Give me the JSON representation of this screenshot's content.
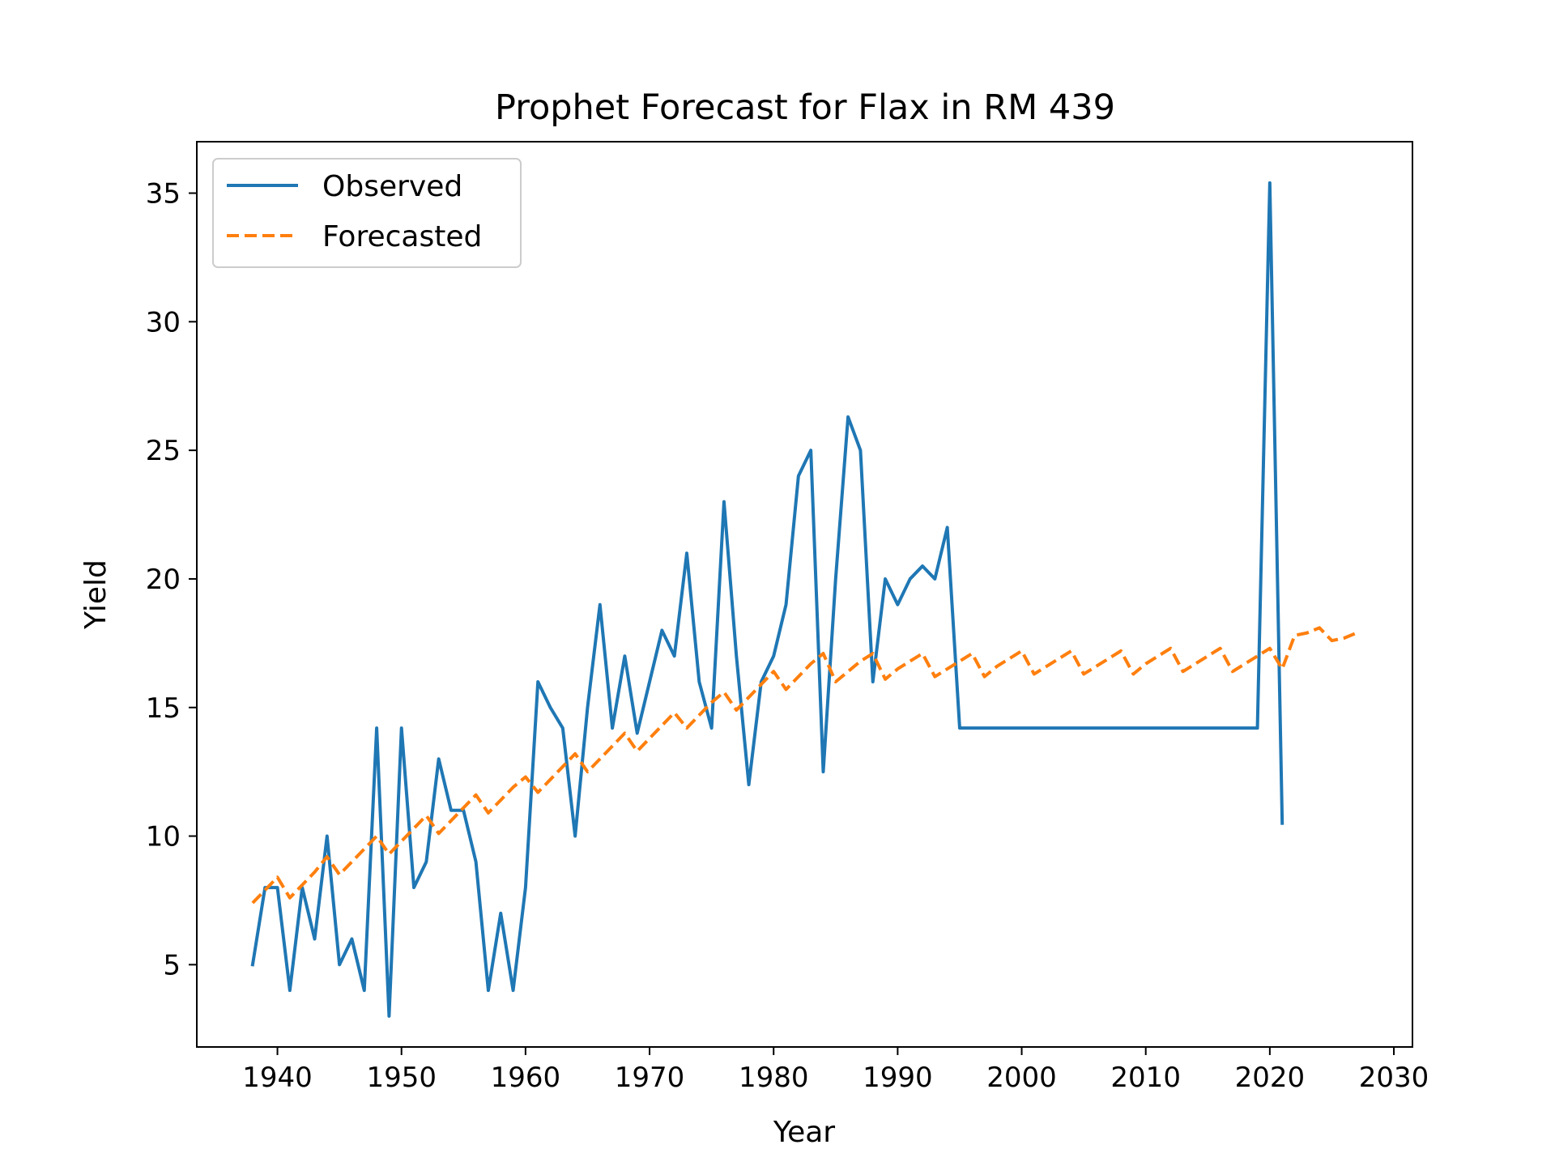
{
  "chart_data": {
    "type": "line",
    "title": "Prophet Forecast for Flax in RM 439",
    "xlabel": "Year",
    "ylabel": "Yield",
    "xlim": [
      1933.5,
      2031.5
    ],
    "ylim": [
      1.8,
      37
    ],
    "xticks": [
      1940,
      1950,
      1960,
      1970,
      1980,
      1990,
      2000,
      2010,
      2020,
      2030
    ],
    "yticks": [
      5,
      10,
      15,
      20,
      25,
      30,
      35
    ],
    "grid": false,
    "legend_position": "top-left",
    "series": [
      {
        "name": "Observed",
        "color": "#1f77b4",
        "style": "solid",
        "x": [
          1938,
          1939,
          1940,
          1941,
          1942,
          1943,
          1944,
          1945,
          1946,
          1947,
          1948,
          1949,
          1950,
          1951,
          1952,
          1953,
          1954,
          1955,
          1956,
          1957,
          1958,
          1959,
          1960,
          1961,
          1962,
          1963,
          1964,
          1965,
          1966,
          1967,
          1968,
          1969,
          1970,
          1971,
          1972,
          1973,
          1974,
          1975,
          1976,
          1977,
          1978,
          1979,
          1980,
          1981,
          1982,
          1983,
          1984,
          1985,
          1986,
          1987,
          1988,
          1989,
          1990,
          1991,
          1992,
          1993,
          1994,
          1995,
          1996,
          1997,
          1998,
          1999,
          2000,
          2001,
          2002,
          2003,
          2004,
          2005,
          2006,
          2007,
          2008,
          2009,
          2010,
          2011,
          2012,
          2013,
          2014,
          2015,
          2016,
          2017,
          2018,
          2019,
          2020,
          2021
        ],
        "y": [
          5,
          8,
          8,
          4,
          8,
          6,
          10,
          5,
          6,
          4,
          14.2,
          3,
          14.2,
          8,
          9,
          13,
          11,
          11,
          9,
          4,
          7,
          4,
          8,
          16,
          15,
          14.2,
          10,
          15,
          19,
          14.2,
          17,
          14,
          16,
          18,
          17,
          21,
          16,
          14.2,
          23,
          17,
          12,
          16,
          17,
          19,
          24,
          25,
          12.5,
          20,
          26.3,
          25,
          16,
          20,
          19,
          20,
          20.5,
          20,
          22,
          14.2,
          14.2,
          14.2,
          14.2,
          14.2,
          14.2,
          14.2,
          14.2,
          14.2,
          14.2,
          14.2,
          14.2,
          14.2,
          14.2,
          14.2,
          14.2,
          14.2,
          14.2,
          14.2,
          14.2,
          14.2,
          14.2,
          14.2,
          14.2,
          14.2,
          35.4,
          10.5
        ]
      },
      {
        "name": "Forecasted",
        "color": "#ff7f0e",
        "style": "dashed",
        "x": [
          1938,
          1939,
          1940,
          1941,
          1942,
          1943,
          1944,
          1945,
          1946,
          1947,
          1948,
          1949,
          1950,
          1951,
          1952,
          1953,
          1954,
          1955,
          1956,
          1957,
          1958,
          1959,
          1960,
          1961,
          1962,
          1963,
          1964,
          1965,
          1966,
          1967,
          1968,
          1969,
          1970,
          1971,
          1972,
          1973,
          1974,
          1975,
          1976,
          1977,
          1978,
          1979,
          1980,
          1981,
          1982,
          1983,
          1984,
          1985,
          1986,
          1987,
          1988,
          1989,
          1990,
          1991,
          1992,
          1993,
          1994,
          1995,
          1996,
          1997,
          1998,
          1999,
          2000,
          2001,
          2002,
          2003,
          2004,
          2005,
          2006,
          2007,
          2008,
          2009,
          2010,
          2011,
          2012,
          2013,
          2014,
          2015,
          2016,
          2017,
          2018,
          2019,
          2020,
          2021,
          2022,
          2023,
          2024,
          2025,
          2026,
          2027
        ],
        "y": [
          7.4,
          7.9,
          8.4,
          7.6,
          8.1,
          8.6,
          9.2,
          8.5,
          9.0,
          9.5,
          10.0,
          9.3,
          9.8,
          10.3,
          10.8,
          10.1,
          10.6,
          11.1,
          11.6,
          10.9,
          11.4,
          11.9,
          12.3,
          11.7,
          12.2,
          12.7,
          13.2,
          12.5,
          13.0,
          13.5,
          14.0,
          13.3,
          13.8,
          14.3,
          14.8,
          14.2,
          14.7,
          15.2,
          15.6,
          14.9,
          15.4,
          15.9,
          16.4,
          15.7,
          16.2,
          16.7,
          17.1,
          16.0,
          16.4,
          16.8,
          17.1,
          16.1,
          16.5,
          16.8,
          17.1,
          16.2,
          16.5,
          16.8,
          17.1,
          16.2,
          16.6,
          16.9,
          17.2,
          16.3,
          16.6,
          16.9,
          17.2,
          16.3,
          16.6,
          16.9,
          17.2,
          16.3,
          16.7,
          17.0,
          17.3,
          16.4,
          16.7,
          17.0,
          17.3,
          16.4,
          16.7,
          17.0,
          17.3,
          16.5,
          17.8,
          17.9,
          18.1,
          17.6,
          17.7,
          17.9
        ]
      }
    ]
  }
}
